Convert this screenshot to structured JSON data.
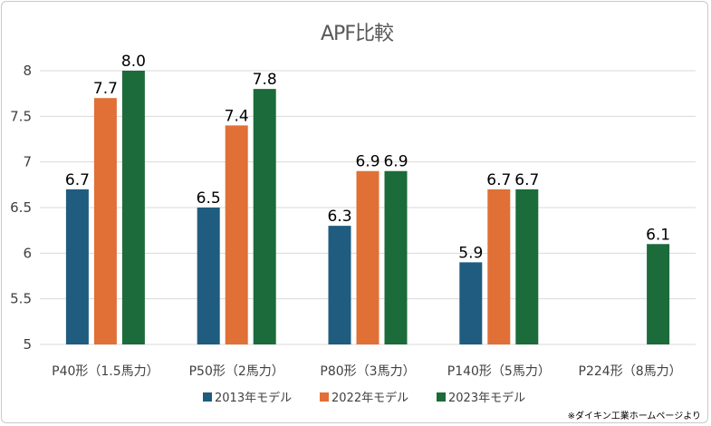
{
  "chart_data": {
    "type": "bar",
    "title": "APF比較",
    "categories": [
      "P40形（1.5馬力）",
      "P50形（2馬力）",
      "P80形（3馬力）",
      "P140形（5馬力）",
      "P224形（8馬力）"
    ],
    "series": [
      {
        "name": "2013年モデル",
        "color": "#1f5c7f",
        "values": [
          6.7,
          6.5,
          6.3,
          5.9,
          null
        ]
      },
      {
        "name": "2022年モデル",
        "color": "#e07036",
        "values": [
          7.7,
          7.4,
          6.9,
          6.7,
          null
        ]
      },
      {
        "name": "2023年モデル",
        "color": "#1c6b3a",
        "values": [
          8.0,
          7.8,
          6.9,
          6.7,
          6.1
        ]
      }
    ],
    "data_labels": [
      [
        "6.7",
        "6.5",
        "6.3",
        "5.9",
        ""
      ],
      [
        "7.7",
        "7.4",
        "6.9",
        "6.7",
        ""
      ],
      [
        "8.0",
        "7.8",
        "6.9",
        "6.7",
        "6.1"
      ]
    ],
    "y_ticks": [
      5,
      5.5,
      6,
      6.5,
      7,
      7.5,
      8
    ],
    "y_tick_labels": [
      "5",
      "5.5",
      "6",
      "6.5",
      "7",
      "7.5",
      "8"
    ],
    "ylim": [
      5,
      8
    ],
    "xlabel": "",
    "ylabel": "",
    "grid": true,
    "legend_position": "bottom",
    "source_note": "※ダイキン工業ホームページより"
  }
}
